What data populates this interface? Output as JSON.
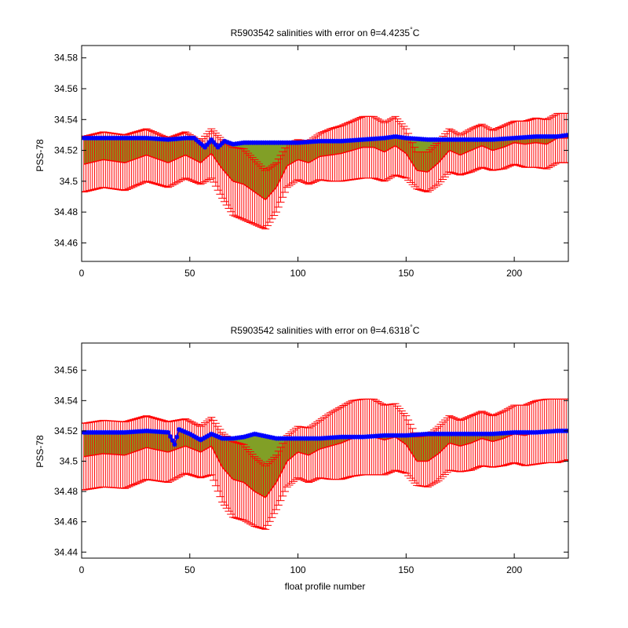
{
  "figure": {
    "background": "#ffffff",
    "colors": {
      "errorbar": "#ff0000",
      "mapped_line": "#ff0000",
      "float_markers": "#0000ff",
      "fill": "#6b8e00",
      "axes": "#000000"
    }
  },
  "chart_data": [
    {
      "type": "line",
      "title": "R5903542 salinities with error on θ=4.4235°C",
      "title_main": "R5903542 salinities with error on θ=4.4235",
      "title_sup": "°",
      "title_unit": "C",
      "xlabel": "",
      "ylabel": "PSS-78",
      "xlim": [
        0,
        225
      ],
      "ylim": [
        34.448,
        34.588
      ],
      "xticks": [
        0,
        50,
        100,
        150,
        200
      ],
      "xticklabels": [
        "0",
        "50",
        "100",
        "150",
        "200"
      ],
      "yticks": [
        34.46,
        34.48,
        34.5,
        34.52,
        34.54,
        34.56,
        34.58
      ],
      "yticklabels": [
        "34.46",
        "34.48",
        "34.5",
        "34.52",
        "34.54",
        "34.56",
        "34.58"
      ],
      "grid": false,
      "series": [
        {
          "role": "mapped_salinity",
          "x": [
            1,
            10,
            20,
            30,
            40,
            48,
            55,
            60,
            65,
            70,
            75,
            80,
            85,
            90,
            95,
            100,
            105,
            110,
            115,
            120,
            125,
            130,
            135,
            140,
            145,
            150,
            155,
            160,
            165,
            170,
            175,
            180,
            185,
            190,
            195,
            200,
            205,
            210,
            215,
            220,
            225
          ],
          "values": [
            34.511,
            34.514,
            34.512,
            34.517,
            34.512,
            34.517,
            34.512,
            34.518,
            34.508,
            34.5,
            34.498,
            34.493,
            34.488,
            34.496,
            34.51,
            34.514,
            34.512,
            34.516,
            34.517,
            34.518,
            34.52,
            34.522,
            34.522,
            34.519,
            34.523,
            34.518,
            34.507,
            34.506,
            34.512,
            34.52,
            34.517,
            34.52,
            34.523,
            34.52,
            34.522,
            34.525,
            34.524,
            34.525,
            34.524,
            34.528,
            34.528
          ],
          "error": [
            0.018,
            0.018,
            0.018,
            0.017,
            0.016,
            0.015,
            0.014,
            0.016,
            0.019,
            0.022,
            0.023,
            0.021,
            0.019,
            0.016,
            0.014,
            0.013,
            0.014,
            0.015,
            0.017,
            0.018,
            0.019,
            0.02,
            0.02,
            0.019,
            0.019,
            0.016,
            0.012,
            0.013,
            0.014,
            0.014,
            0.013,
            0.014,
            0.014,
            0.013,
            0.014,
            0.014,
            0.015,
            0.016,
            0.016,
            0.016,
            0.016
          ]
        },
        {
          "role": "float_salinity",
          "x": [
            1,
            10,
            20,
            30,
            40,
            48,
            52,
            57,
            60,
            63,
            66,
            70,
            75,
            80,
            90,
            100,
            110,
            120,
            130,
            140,
            145,
            150,
            160,
            170,
            180,
            190,
            200,
            210,
            220,
            225
          ],
          "values": [
            34.528,
            34.528,
            34.528,
            34.528,
            34.527,
            34.528,
            34.528,
            34.522,
            34.527,
            34.522,
            34.526,
            34.524,
            34.525,
            34.525,
            34.525,
            34.525,
            34.526,
            34.526,
            34.527,
            34.528,
            34.529,
            34.528,
            34.527,
            34.527,
            34.527,
            34.527,
            34.528,
            34.529,
            34.529,
            34.53
          ]
        }
      ]
    },
    {
      "type": "line",
      "title": "R5903542 salinities with error on θ=4.6318°C",
      "title_main": "R5903542 salinities with error on θ=4.6318",
      "title_sup": "°",
      "title_unit": "C",
      "xlabel": "float profile number",
      "ylabel": "PSS-78",
      "xlim": [
        0,
        225
      ],
      "ylim": [
        34.436,
        34.578
      ],
      "xticks": [
        0,
        50,
        100,
        150,
        200
      ],
      "xticklabels": [
        "0",
        "50",
        "100",
        "150",
        "200"
      ],
      "yticks": [
        34.44,
        34.46,
        34.48,
        34.5,
        34.52,
        34.54,
        34.56
      ],
      "yticklabels": [
        "34.44",
        "34.46",
        "34.48",
        "34.5",
        "34.52",
        "34.54",
        "34.56"
      ],
      "grid": false,
      "series": [
        {
          "role": "mapped_salinity",
          "x": [
            1,
            10,
            20,
            30,
            40,
            48,
            55,
            60,
            65,
            70,
            75,
            80,
            85,
            90,
            95,
            100,
            105,
            110,
            115,
            120,
            125,
            130,
            135,
            140,
            145,
            150,
            155,
            160,
            165,
            170,
            175,
            180,
            185,
            190,
            195,
            200,
            205,
            210,
            215,
            220,
            225
          ],
          "values": [
            34.503,
            34.505,
            34.504,
            34.509,
            34.506,
            34.51,
            34.506,
            34.51,
            34.496,
            34.488,
            34.486,
            34.48,
            34.476,
            34.486,
            34.5,
            34.506,
            34.504,
            34.508,
            34.51,
            34.512,
            34.515,
            34.516,
            34.516,
            34.514,
            34.516,
            34.511,
            34.5,
            34.5,
            34.505,
            34.512,
            34.51,
            34.512,
            34.515,
            34.513,
            34.515,
            34.518,
            34.517,
            34.519,
            34.52,
            34.52,
            34.521
          ],
          "error": [
            0.022,
            0.022,
            0.022,
            0.021,
            0.02,
            0.018,
            0.017,
            0.019,
            0.023,
            0.025,
            0.025,
            0.023,
            0.021,
            0.018,
            0.017,
            0.017,
            0.018,
            0.019,
            0.022,
            0.024,
            0.025,
            0.025,
            0.025,
            0.023,
            0.022,
            0.019,
            0.016,
            0.017,
            0.018,
            0.018,
            0.017,
            0.018,
            0.018,
            0.017,
            0.018,
            0.019,
            0.02,
            0.021,
            0.021,
            0.021,
            0.02
          ]
        },
        {
          "role": "float_salinity",
          "x": [
            1,
            10,
            20,
            30,
            40,
            43,
            45,
            50,
            55,
            60,
            65,
            70,
            75,
            80,
            90,
            100,
            110,
            120,
            130,
            140,
            150,
            160,
            170,
            180,
            190,
            200,
            210,
            220,
            225
          ],
          "values": [
            34.519,
            34.519,
            34.519,
            34.52,
            34.519,
            34.511,
            34.521,
            34.518,
            34.514,
            34.518,
            34.515,
            34.515,
            34.516,
            34.518,
            34.515,
            34.515,
            34.515,
            34.516,
            34.516,
            34.517,
            34.517,
            34.518,
            34.518,
            34.518,
            34.518,
            34.519,
            34.519,
            34.52,
            34.52
          ]
        }
      ]
    }
  ]
}
